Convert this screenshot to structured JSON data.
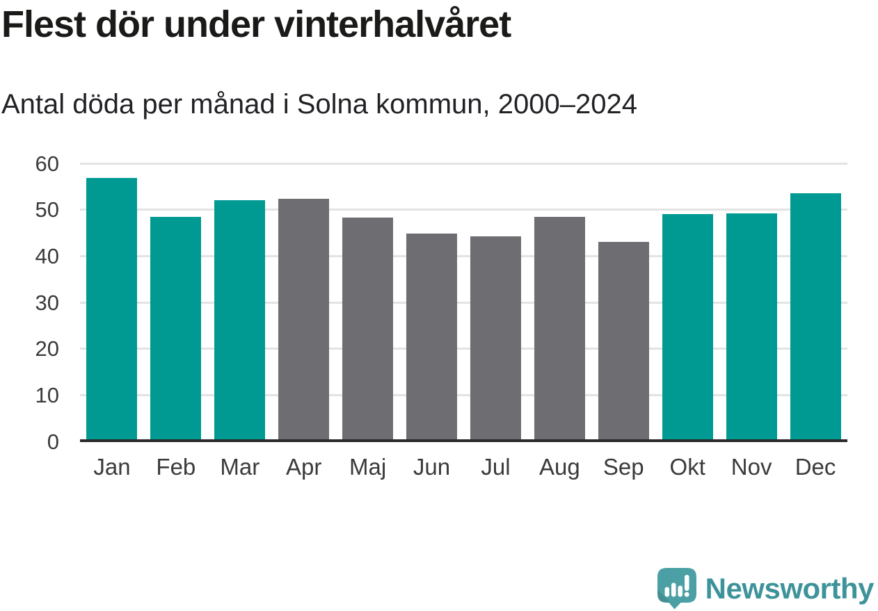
{
  "header": {
    "title": "Flest dör under vinterhalvåret",
    "subtitle": "Antal döda per månad i Solna kommun, 2000–2024"
  },
  "chart_data": {
    "type": "bar",
    "title": "Flest dör under vinterhalvåret",
    "subtitle": "Antal döda per månad i Solna kommun, 2000–2024",
    "categories": [
      "Jan",
      "Feb",
      "Mar",
      "Apr",
      "Maj",
      "Jun",
      "Jul",
      "Aug",
      "Sep",
      "Okt",
      "Nov",
      "Dec"
    ],
    "values": [
      56.9,
      48.5,
      52.0,
      52.3,
      48.3,
      44.8,
      44.2,
      48.5,
      43.0,
      49.1,
      49.2,
      53.6
    ],
    "bar_color_keys": [
      "highlight",
      "highlight",
      "highlight",
      "base",
      "base",
      "base",
      "base",
      "base",
      "base",
      "highlight",
      "highlight",
      "highlight"
    ],
    "bar_palette": {
      "highlight": "#009a93",
      "base": "#6d6d72"
    },
    "highlighted_months": [
      "Jan",
      "Feb",
      "Mar",
      "Okt",
      "Nov",
      "Dec"
    ],
    "xlabel": "",
    "ylabel": "",
    "ylim": [
      0,
      60
    ],
    "yticks": [
      0,
      10,
      20,
      30,
      40,
      50,
      60
    ],
    "grid": "horizontal",
    "legend": "none"
  },
  "colors": {
    "background": "#ffffff",
    "title_text": "#1a1a18",
    "subtitle_text": "#222226",
    "axis_label_text": "#3a3a3a",
    "gridline": "#e3e3e3",
    "baseline": "#2b2b2b"
  },
  "footer": {
    "brand": "Newsworthy",
    "brand_text_color": "#3d9399",
    "icon": "newsworthy-speech-bubble-bar-chart-icon",
    "icon_color": "#4ba0a5",
    "icon_mark_color": "#ffffff"
  }
}
